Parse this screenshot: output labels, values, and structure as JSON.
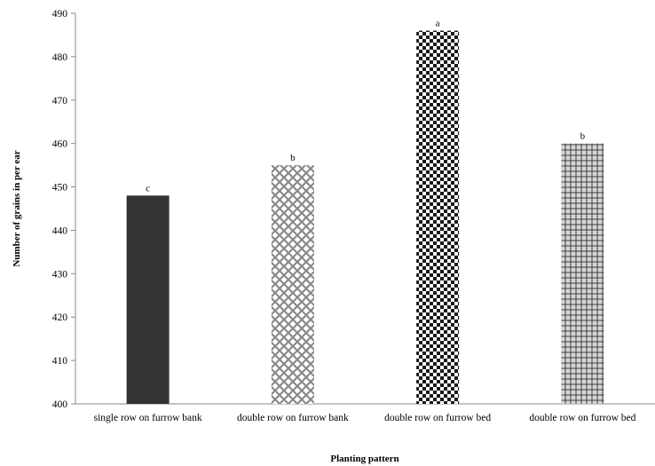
{
  "chart_data": {
    "type": "bar",
    "categories": [
      "single row on furrow bank",
      "double row on furrow bank",
      "double row on furrow bed",
      "double row on furrow bed"
    ],
    "values": [
      448,
      455,
      486,
      460
    ],
    "significance_letters": [
      "c",
      "b",
      "a",
      "b"
    ],
    "bar_styles": [
      "solid-dark",
      "diagonal-lattice",
      "checkerboard",
      "plaid-gray"
    ],
    "xlabel": "Planting pattern",
    "ylabel": "Number of grains in per ear",
    "ylim": [
      400,
      490
    ],
    "yticks": [
      400,
      410,
      420,
      430,
      440,
      450,
      460,
      470,
      480,
      490
    ],
    "grid": false,
    "legend": "none"
  }
}
